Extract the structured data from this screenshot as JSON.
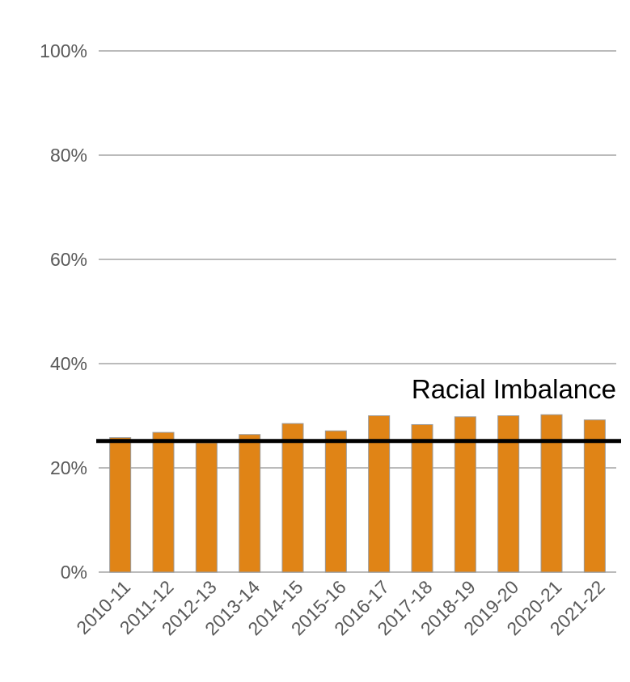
{
  "chart_data": {
    "type": "bar",
    "title": "",
    "xlabel": "",
    "ylabel": "",
    "categories": [
      "2010-11",
      "2011-12",
      "2012-13",
      "2013-14",
      "2014-15",
      "2015-16",
      "2016-17",
      "2017-18",
      "2018-19",
      "2019-20",
      "2020-21",
      "2021-22"
    ],
    "series": [
      {
        "values": [
          25.8,
          26.8,
          24.8,
          26.4,
          28.5,
          27.1,
          30.0,
          28.3,
          29.8,
          30.0,
          30.2,
          29.2
        ]
      }
    ],
    "ylim": [
      0,
      100
    ],
    "yticks": [
      0,
      20,
      40,
      60,
      80,
      100
    ],
    "ytick_labels": [
      "0%",
      "20%",
      "40%",
      "60%",
      "80%",
      "100%"
    ],
    "grid": true,
    "reference_line": {
      "value": 25,
      "label": "Racial Imbalance",
      "color": "#000000"
    },
    "colors": {
      "bar": "#E08416",
      "bar_outline": "#9A9A9A",
      "gridline": "#BBBBBB",
      "tick_label": "#595959"
    }
  }
}
